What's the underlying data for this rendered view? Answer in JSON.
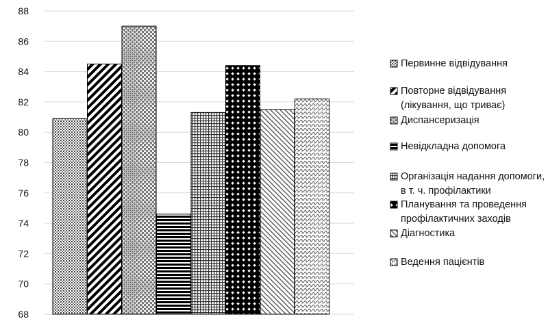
{
  "chart_data": {
    "type": "bar",
    "title": "",
    "xlabel": "",
    "ylabel": "",
    "ylim": [
      68,
      88
    ],
    "yticks": [
      68,
      70,
      72,
      74,
      76,
      78,
      80,
      82,
      84,
      86,
      88
    ],
    "grid": true,
    "legend_position": "right",
    "series": [
      {
        "name": "Первинне відвідування",
        "value": 80.9,
        "pattern": "grid-dots",
        "legend_lines": [
          "Первинне відвідування"
        ]
      },
      {
        "name": "Повторне відвідування (лікування, що триває)",
        "value": 84.5,
        "pattern": "diagonal-bold",
        "legend_lines": [
          "Повторне відвідування",
          "(лікування, що триває)"
        ]
      },
      {
        "name": "Диспансеризація",
        "value": 87.0,
        "pattern": "checker-fine",
        "legend_lines": [
          "Диспансеризація"
        ]
      },
      {
        "name": "Невідкладна допомога",
        "value": 74.6,
        "pattern": "horizontal-bold",
        "legend_lines": [
          "Невідкладна допомога"
        ]
      },
      {
        "name": "Організація надання допомоги, в т. ч. профілактики",
        "value": 81.3,
        "pattern": "grid-fine",
        "legend_lines": [
          "Організація надання допомоги,",
          "в т. ч. профілактики"
        ]
      },
      {
        "name": "Планування та проведення профілактичних заходів",
        "value": 84.4,
        "pattern": "diamond-bold",
        "legend_lines": [
          "Планування та проведення",
          "профілактичних заходів"
        ]
      },
      {
        "name": "Діагностика",
        "value": 81.5,
        "pattern": "diagonal-fine",
        "legend_lines": [
          "Діагностика"
        ]
      },
      {
        "name": "Ведення пацієнтів",
        "value": 82.2,
        "pattern": "wave-fine",
        "legend_lines": [
          "Ведення пацієнтів"
        ]
      }
    ]
  }
}
